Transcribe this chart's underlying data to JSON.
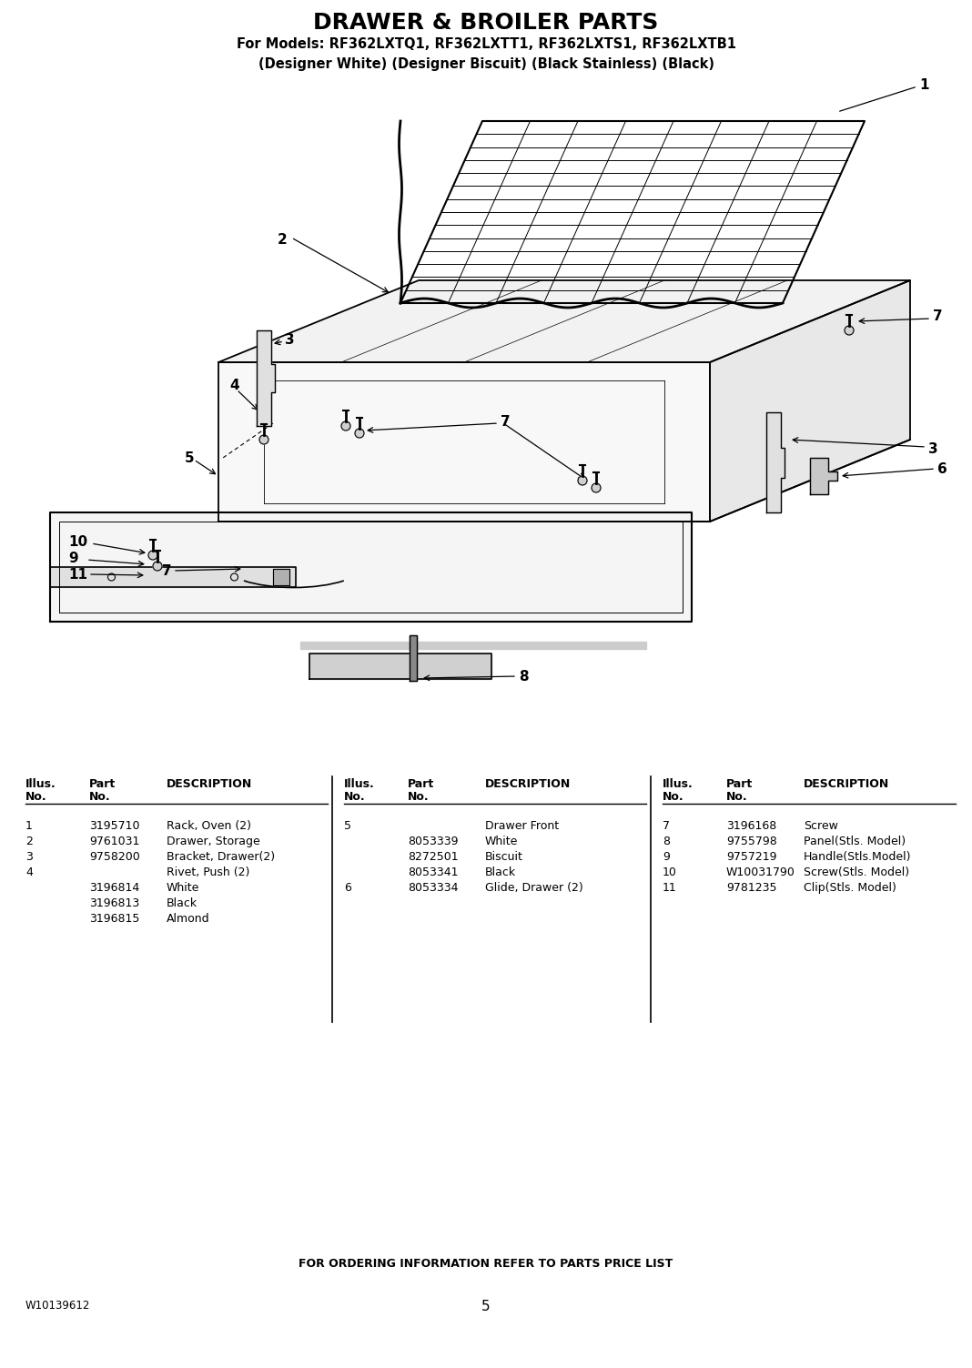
{
  "title": "DRAWER & BROILER PARTS",
  "subtitle1": "For Models: RF362LXTQ1, RF362LXTT1, RF362LXTS1, RF362LXTB1",
  "subtitle2": "(Designer White) (Designer Biscuit) (Black Stainless) (Black)",
  "footer_left": "W10139612",
  "footer_center": "5",
  "footer_note": "FOR ORDERING INFORMATION REFER TO PARTS PRICE LIST",
  "bg_color": "#ffffff",
  "text_color": "#000000",
  "title_fontsize": 18,
  "subtitle_fontsize": 10.5,
  "table_fontsize": 9,
  "footer_fontsize": 8.5
}
